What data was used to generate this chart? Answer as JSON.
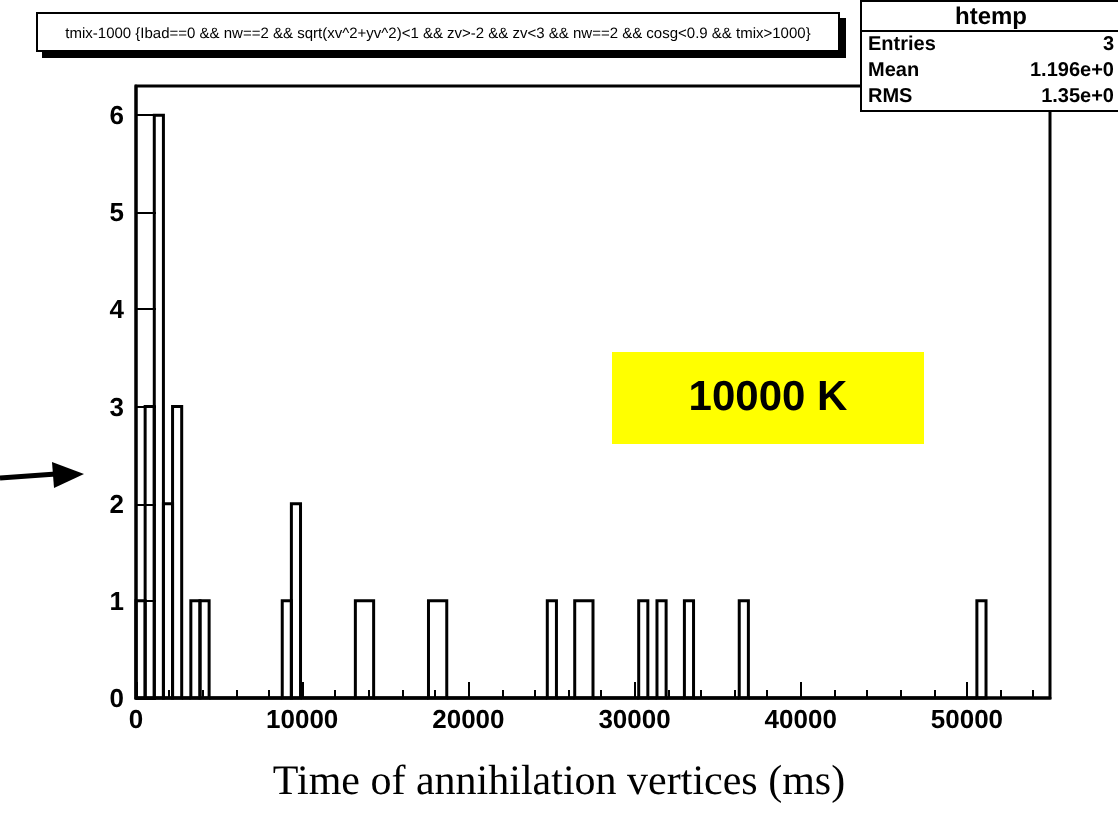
{
  "chart_data": {
    "type": "histogram",
    "title": "tmix-1000 {Ibad==0 && nw==2 && sqrt(xv^2+yv^2)<1 && zv>-2 && zv<3 && nw==2 && cosg<0.9 && tmix>1000}",
    "xlabel": "Time of annihilation vertices  (ms)",
    "bins": [
      0,
      550,
      1100,
      1650,
      2200,
      2750,
      3300,
      3850,
      4400,
      8800,
      9350,
      9900,
      13200,
      14300,
      17600,
      18700,
      24750,
      25300,
      26400,
      27500,
      30250,
      30800,
      31350,
      31900,
      33000,
      33550,
      36300,
      36850,
      50600,
      51150
    ],
    "values": [
      1,
      3,
      6,
      2,
      3,
      0,
      1,
      1,
      0,
      1,
      2,
      0,
      1,
      0,
      1,
      0,
      1,
      0,
      1,
      0,
      1,
      0,
      1,
      0,
      1,
      0,
      1,
      0,
      1
    ],
    "color": "#000000",
    "xlim": [
      0,
      55000
    ],
    "xticks": [
      0,
      10000,
      20000,
      30000,
      40000,
      50000
    ],
    "ylim": [
      0,
      6.3
    ],
    "yticks": [
      0,
      1,
      2,
      3,
      4,
      5,
      6
    ],
    "grid": false,
    "annotations": [
      "htemp",
      "Entries",
      "3",
      "Mean",
      "1.196e+0",
      "RMS",
      "1.35e+0",
      "10000 K"
    ]
  }
}
